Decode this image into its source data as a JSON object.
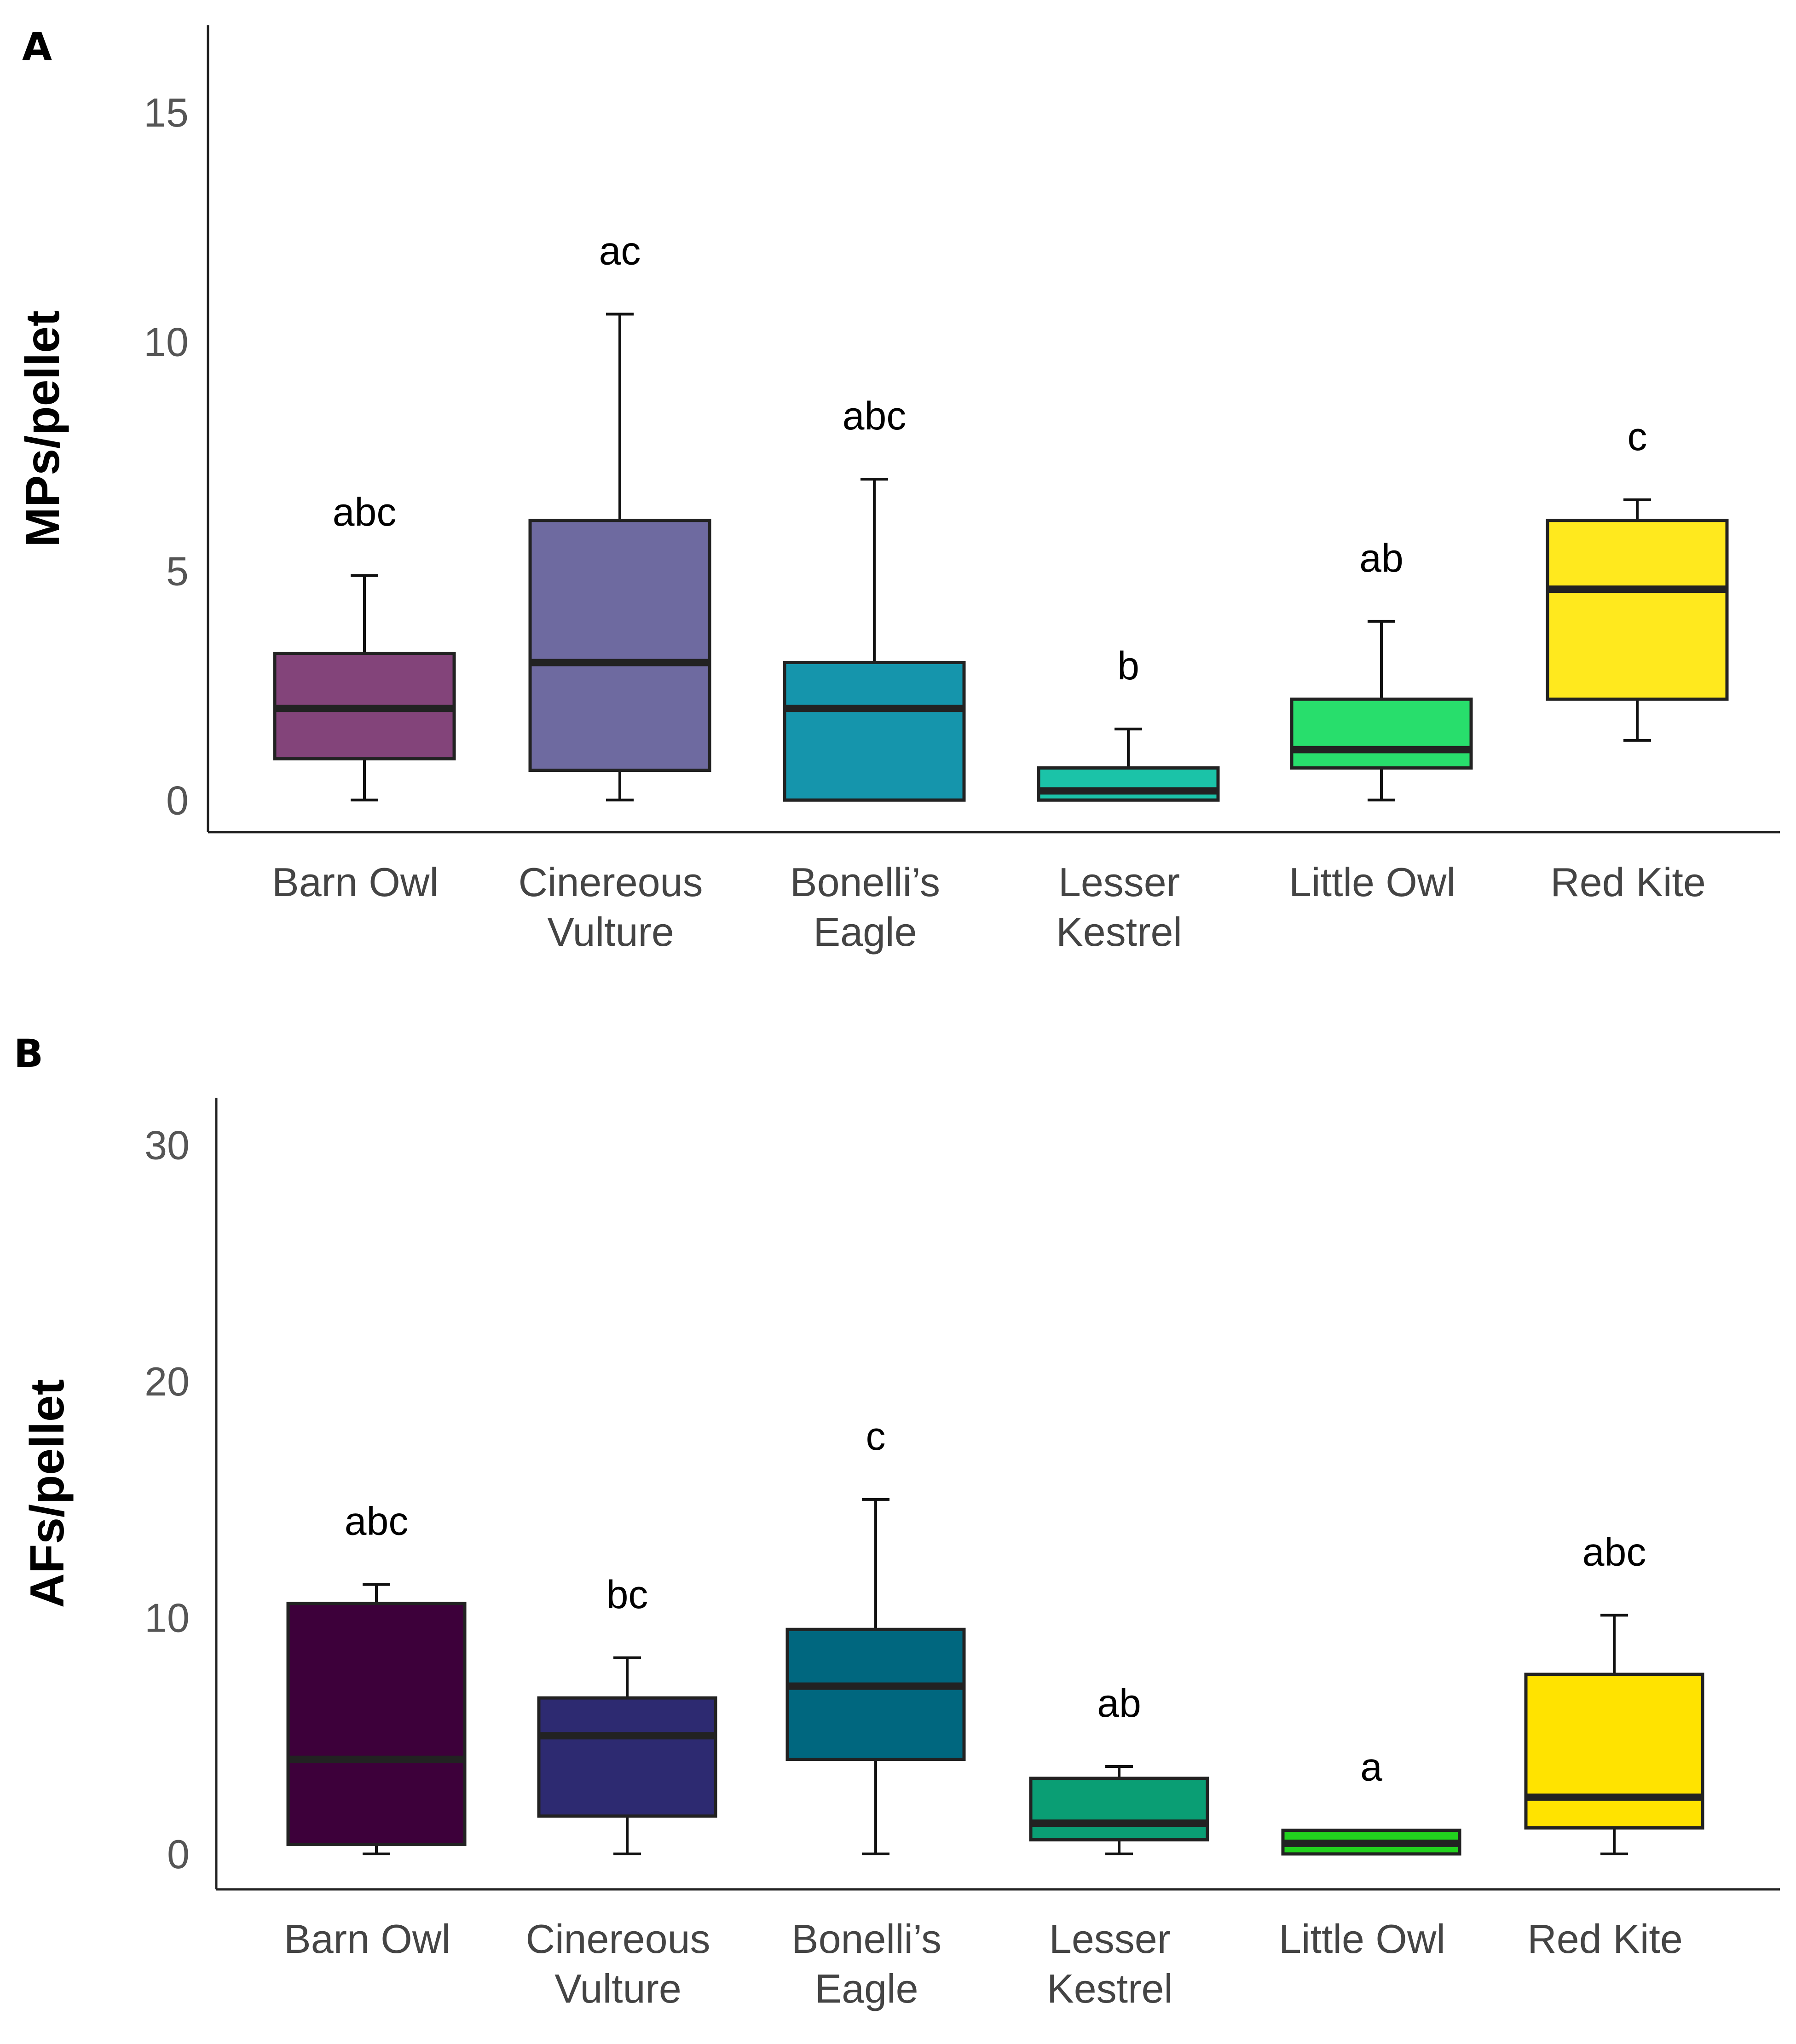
{
  "chart_data": [
    {
      "panel": "A",
      "type": "box",
      "ylabel": "MPs/pellet",
      "yticks": [
        0,
        5,
        10,
        15
      ],
      "ylim": [
        -0.7,
        16.9
      ],
      "categories": [
        {
          "lines": [
            "Barn Owl"
          ]
        },
        {
          "lines": [
            "Cinereous",
            "Vulture"
          ]
        },
        {
          "lines": [
            "Bonelli’s",
            "Eagle"
          ]
        },
        {
          "lines": [
            "Lesser",
            "Kestrel"
          ]
        },
        {
          "lines": [
            "Little Owl"
          ]
        },
        {
          "lines": [
            "Red Kite"
          ]
        }
      ],
      "boxes": [
        {
          "min": 0,
          "q1": 0.9,
          "median": 2.0,
          "q3": 3.2,
          "max": 4.9,
          "letter": "abc",
          "color": "#83447A"
        },
        {
          "min": 0,
          "q1": 0.65,
          "median": 3.0,
          "q3": 6.1,
          "max": 10.6,
          "letter": "ac",
          "color": "#6E6AA0"
        },
        {
          "min": 0,
          "q1": 0,
          "median": 2.0,
          "q3": 3.0,
          "max": 7.0,
          "letter": "abc",
          "color": "#1595AC"
        },
        {
          "min": 0,
          "q1": 0,
          "median": 0.2,
          "q3": 0.7,
          "max": 1.55,
          "letter": "b",
          "color": "#1BC3A8"
        },
        {
          "min": 0,
          "q1": 0.7,
          "median": 1.1,
          "q3": 2.2,
          "max": 3.9,
          "letter": "ab",
          "color": "#28DE6C"
        },
        {
          "min": 1.3,
          "q1": 2.2,
          "median": 4.6,
          "q3": 6.1,
          "max": 6.55,
          "letter": "c",
          "color": "#FFE91E"
        }
      ]
    },
    {
      "panel": "B",
      "type": "box",
      "ylabel": "AFs/pellet",
      "yticks": [
        0,
        10,
        20,
        30
      ],
      "ylim": [
        -1.5,
        32.0
      ],
      "categories": [
        {
          "lines": [
            "Barn Owl"
          ]
        },
        {
          "lines": [
            "Cinereous",
            "Vulture"
          ]
        },
        {
          "lines": [
            "Bonelli’s",
            "Eagle"
          ]
        },
        {
          "lines": [
            "Lesser",
            "Kestrel"
          ]
        },
        {
          "lines": [
            "Little Owl"
          ]
        },
        {
          "lines": [
            "Red Kite"
          ]
        }
      ],
      "boxes": [
        {
          "min": 0,
          "q1": 0.4,
          "median": 4.0,
          "q3": 10.6,
          "max": 11.4,
          "letter": "abc",
          "color": "#3D003A"
        },
        {
          "min": 0,
          "q1": 1.6,
          "median": 5.0,
          "q3": 6.6,
          "max": 8.3,
          "letter": "bc",
          "color": "#2D2A71"
        },
        {
          "min": 0,
          "q1": 4.0,
          "median": 7.1,
          "q3": 9.5,
          "max": 15.0,
          "letter": "c",
          "color": "#00677F"
        },
        {
          "min": 0,
          "q1": 0.6,
          "median": 1.3,
          "q3": 3.2,
          "max": 3.7,
          "letter": "ab",
          "color": "#0A9E74"
        },
        {
          "min": 0,
          "q1": 0,
          "median": 0.45,
          "q3": 1.0,
          "max": 1.0,
          "letter": "a",
          "color": "#22D21E"
        },
        {
          "min": 0,
          "q1": 1.1,
          "median": 2.4,
          "q3": 7.6,
          "max": 10.1,
          "letter": "abc",
          "color": "#FFE300"
        }
      ]
    }
  ]
}
